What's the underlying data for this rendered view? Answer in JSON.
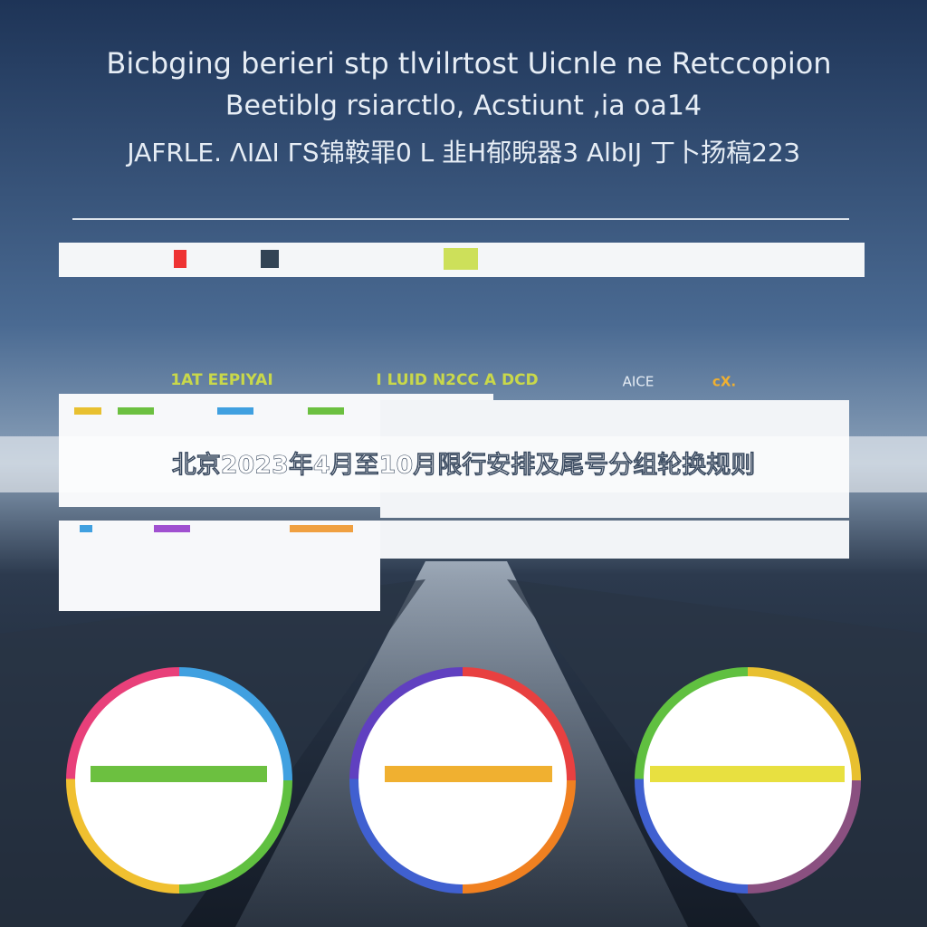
{
  "header": {
    "lines": [
      "Bicbging berieri stp tlvilrtost Uicnle ne Retccopion",
      "Beetiblg rsiarctlo, Acstiunt ,ia oa14",
      "JAFRLE. ΛΙΔΙ ΓՏ锦鞍罪0 L 韭H郁睨器3  AlbIJ 丁卜扬稿22З"
    ]
  },
  "sections": [
    "1AT EEPIYAI",
    "I LUID N2CC A DCD",
    "AICE",
    "cX."
  ],
  "caption": "北京2023年4月至10月限行安排及尾号分组轮换规则"
}
